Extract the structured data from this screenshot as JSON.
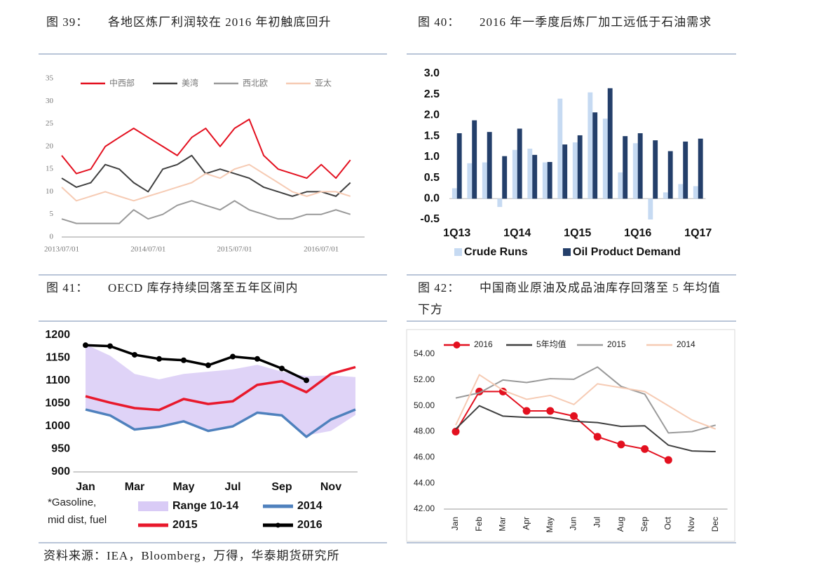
{
  "captions": [
    {
      "label": "图 39：",
      "text": "各地区炼厂利润较在 2016 年初触底回升"
    },
    {
      "label": "图 40：",
      "text": "2016 年一季度后炼厂加工远低于石油需求"
    },
    {
      "label": "图 41：",
      "text": "OECD 库存持续回落至五年区间内"
    },
    {
      "label": "图 42：",
      "text": "中国商业原油及成品油库存回落至 5 年均值下方"
    }
  ],
  "chart_data": [
    {
      "type": "line",
      "x": [
        "2013/07/01",
        "2013/09/01",
        "2013/11/01",
        "2014/01/01",
        "2014/03/01",
        "2014/05/01",
        "2014/07/01",
        "2014/09/01",
        "2014/11/01",
        "2015/01/01",
        "2015/03/01",
        "2015/05/01",
        "2015/07/01",
        "2015/09/01",
        "2015/11/01",
        "2016/01/01",
        "2016/03/01",
        "2016/05/01",
        "2016/07/01",
        "2016/09/01",
        "2016/11/01"
      ],
      "xlim": [
        "2013/07/01",
        "2016/12/31"
      ],
      "xticks": [
        "2013/07/01",
        "2014/07/01",
        "2015/07/01",
        "2016/07/01"
      ],
      "ylim": [
        0,
        35
      ],
      "yticks": [
        0,
        5,
        10,
        15,
        20,
        25,
        30,
        35
      ],
      "series": [
        {
          "name": "中西部",
          "color": "#e3101f",
          "values": [
            18,
            14,
            15,
            20,
            22,
            24,
            22,
            20,
            18,
            22,
            24,
            20,
            24,
            26,
            18,
            15,
            14,
            13,
            16,
            13,
            17
          ]
        },
        {
          "name": "美湾",
          "color": "#404040",
          "values": [
            13,
            11,
            12,
            16,
            15,
            12,
            10,
            15,
            16,
            18,
            14,
            15,
            14,
            13,
            11,
            10,
            9,
            10,
            10,
            9,
            12
          ]
        },
        {
          "name": "西北欧",
          "color": "#9a9a9a",
          "values": [
            4,
            3,
            3,
            3,
            3,
            6,
            4,
            5,
            7,
            8,
            7,
            6,
            8,
            6,
            5,
            4,
            4,
            5,
            5,
            6,
            5
          ]
        },
        {
          "name": "亚太",
          "color": "#f6cbb4",
          "values": [
            11,
            8,
            9,
            10,
            9,
            8,
            9,
            10,
            11,
            12,
            14,
            13,
            15,
            16,
            14,
            12,
            10,
            9,
            10,
            10,
            9
          ]
        }
      ]
    },
    {
      "type": "bar",
      "categories": [
        "1Q13",
        null,
        null,
        null,
        "1Q14",
        null,
        null,
        null,
        "1Q15",
        null,
        null,
        null,
        "1Q16",
        null,
        null,
        null,
        "1Q17"
      ],
      "ylim": [
        -0.5,
        3.0
      ],
      "yticks": [
        -0.5,
        {
          "value": 0,
          "label": "0.0"
        },
        0.5,
        {
          "value": 1,
          "label": "1.0"
        },
        1.5,
        {
          "value": 2,
          "label": "2.0"
        },
        2.5,
        {
          "value": 3,
          "label": "3.0"
        }
      ],
      "series": [
        {
          "name": "Crude Runs",
          "color": "#c6daf2",
          "values": [
            0.25,
            0.85,
            0.87,
            -0.2,
            1.17,
            1.2,
            0.87,
            2.4,
            1.35,
            2.55,
            1.92,
            0.63,
            1.33,
            -0.5,
            0.15,
            0.35,
            0.3
          ]
        },
        {
          "name": "Oil Product Demand",
          "color": "#243f6a",
          "values": [
            1.57,
            1.88,
            1.6,
            1.02,
            1.68,
            1.05,
            0.88,
            1.3,
            1.52,
            2.07,
            2.65,
            1.5,
            1.57,
            1.4,
            1.14,
            1.37,
            1.44
          ]
        }
      ]
    },
    {
      "type": "line",
      "categories": [
        "Jan",
        null,
        "Mar",
        null,
        "May",
        null,
        "Jul",
        null,
        "Sep",
        null,
        "Nov",
        null
      ],
      "ylim": [
        900,
        1200
      ],
      "yticks": [
        900,
        950,
        1000,
        1050,
        1100,
        1150,
        1200
      ],
      "note": [
        "*Gasoline,",
        "mid dist, fuel"
      ],
      "series": [
        {
          "name": "Range 10-14",
          "color": "#d9cbf6",
          "values": [
            1180,
            1155,
            1115,
            1103,
            1115,
            1120,
            1125,
            1135,
            1120,
            1110,
            1112,
            1108
          ],
          "low": [
            1040,
            1025,
            995,
            1000,
            1013,
            993,
            1003,
            1030,
            1025,
            980,
            990,
            1025
          ]
        },
        {
          "name": "2014",
          "color": "#4f81bd",
          "values": [
            1037,
            1024,
            993,
            999,
            1011,
            990,
            1000,
            1030,
            1024,
            977,
            1015,
            1037
          ]
        },
        {
          "name": "2015",
          "color": "#e8192c",
          "values": [
            1066,
            1052,
            1040,
            1036,
            1060,
            1049,
            1055,
            1091,
            1099,
            1075,
            1115,
            1130
          ]
        },
        {
          "name": "2016",
          "color": "#000000",
          "marker": true,
          "values": [
            1178,
            1176,
            1157,
            1148,
            1145,
            1134,
            1153,
            1148,
            1127,
            1101,
            null,
            null
          ]
        }
      ]
    },
    {
      "type": "line",
      "categories": [
        "Jan",
        "Feb",
        "Mar",
        "Apr",
        "May",
        "Jun",
        "Jul",
        "Aug",
        "Sep",
        "Oct",
        "Nov",
        "Dec"
      ],
      "ylim": [
        42,
        54
      ],
      "yticks": [
        {
          "value": 42,
          "label": "42.00"
        },
        {
          "value": 44,
          "label": "44.00"
        },
        {
          "value": 46,
          "label": "46.00"
        },
        {
          "value": 48,
          "label": "48.00"
        },
        {
          "value": 50,
          "label": "50.00"
        },
        {
          "value": 52,
          "label": "52.00"
        },
        {
          "value": 54,
          "label": "54.00"
        }
      ],
      "series": [
        {
          "name": "2016",
          "color": "#e3101f",
          "marker": true,
          "values": [
            48.0,
            51.1,
            51.1,
            49.6,
            49.6,
            49.2,
            47.6,
            47.0,
            46.65,
            45.8,
            null,
            null
          ]
        },
        {
          "name": "5年均值",
          "color": "#404040",
          "values": [
            48.2,
            50.0,
            49.2,
            49.1,
            49.1,
            48.8,
            48.7,
            48.4,
            48.45,
            46.95,
            46.5,
            46.45
          ]
        },
        {
          "name": "2015",
          "color": "#9a9a9a",
          "values": [
            50.6,
            51.0,
            52.0,
            51.8,
            52.1,
            52.05,
            53.0,
            51.5,
            50.9,
            47.9,
            48.0,
            48.5
          ]
        },
        {
          "name": "2014",
          "color": "#f6cbb4",
          "values": [
            48.5,
            52.4,
            51.2,
            50.5,
            50.8,
            50.1,
            51.7,
            51.4,
            51.1,
            50.0,
            48.9,
            48.2
          ]
        }
      ]
    }
  ],
  "source": "资料来源：IEA，Bloomberg，万得，华泰期货研究所"
}
